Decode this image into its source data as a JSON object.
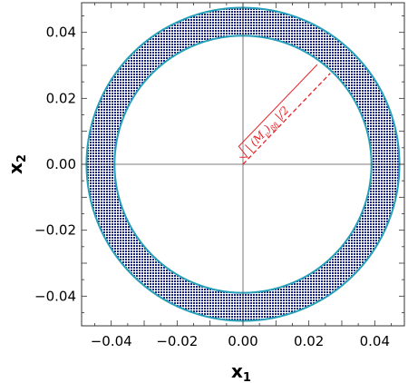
{
  "chart_data": {
    "type": "region",
    "title": "",
    "xlabel": "x",
    "xlabel_sub": "1",
    "ylabel": "x",
    "ylabel_sub": "2",
    "xlim": [
      -0.049,
      0.049
    ],
    "ylim": [
      -0.049,
      0.049
    ],
    "xticks": [
      -0.04,
      -0.02,
      0.0,
      0.02,
      0.04
    ],
    "yticks": [
      -0.04,
      -0.02,
      0.0,
      0.02,
      0.04
    ],
    "xtick_labels": [
      "−0.04",
      "−0.02",
      "0.00",
      "0.02",
      "0.04"
    ],
    "ytick_labels": [
      "−0.04",
      "−0.02",
      "0.00",
      "0.02",
      "0.04"
    ],
    "grid": false,
    "region": {
      "shape": "annulus",
      "center": [
        0.0,
        0.0
      ],
      "inner_radius": 0.039,
      "outer_radius": 0.0475,
      "fill_color": "#1a237e",
      "fill_pattern": "dotted",
      "boundary_color": "#26a0b8"
    },
    "annotation": {
      "text": "|(Mν)ββ|/2",
      "radical": "√",
      "text_main": "| (M",
      "text_sub1": "ν",
      "text_mid": ")",
      "text_sub2": "ββ",
      "text_end": " |/2",
      "color": "#e8232a",
      "line_from": [
        0.0,
        0.0
      ],
      "line_to": [
        0.0265,
        0.0276
      ]
    }
  }
}
